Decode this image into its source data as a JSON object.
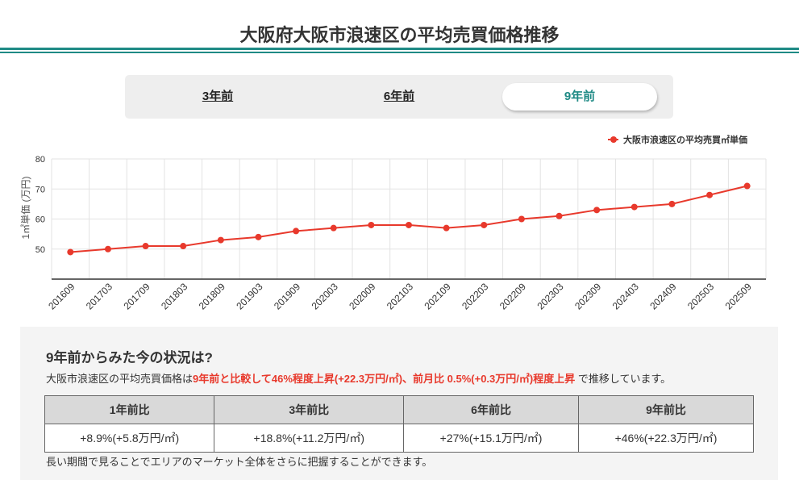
{
  "page_title": "大阪府大阪市浪速区の平均売買価格推移",
  "tabs": [
    {
      "label": "3年前",
      "active": false
    },
    {
      "label": "6年前",
      "active": false
    },
    {
      "label": "9年前",
      "active": true
    }
  ],
  "colors": {
    "accent": "#1f8a85",
    "series": "#e8392c"
  },
  "chart_data": {
    "type": "line",
    "title": "",
    "xlabel": "",
    "ylabel": "1㎡単価 (万円)",
    "ylim": [
      40,
      80
    ],
    "yticks": [
      50,
      60,
      70,
      80
    ],
    "legend": "top-right",
    "grid": true,
    "categories": [
      "201609",
      "201703",
      "201709",
      "201803",
      "201809",
      "201903",
      "201909",
      "202003",
      "202009",
      "202103",
      "202109",
      "202203",
      "202209",
      "202303",
      "202309",
      "202403",
      "202409",
      "202503",
      "202509"
    ],
    "series": [
      {
        "name": "大阪市浪速区の平均売買㎡単価",
        "values": [
          49,
          50,
          51,
          51,
          53,
          54,
          56,
          57,
          58,
          58,
          57,
          58,
          60,
          61,
          63,
          64,
          65,
          68,
          71
        ]
      }
    ]
  },
  "summary": {
    "heading": "9年前からみた今の状況は?",
    "text_prefix": "大阪市浪速区の平均売買価格は",
    "highlight": "9年前と比較して46%程度上昇(+22.3万円/㎡)、前月比 0.5%(+0.3万円/㎡)程度上昇",
    "text_suffix": " で推移しています。",
    "table_headers": [
      "1年前比",
      "3年前比",
      "6年前比",
      "9年前比"
    ],
    "table_values": [
      "+8.9%(+5.8万円/㎡)",
      "+18.8%(+11.2万円/㎡)",
      "+27%(+15.1万円/㎡)",
      "+46%(+22.3万円/㎡)"
    ],
    "note": "長い期間で見ることでエリアのマーケット全体をさらに把握することができます。"
  }
}
